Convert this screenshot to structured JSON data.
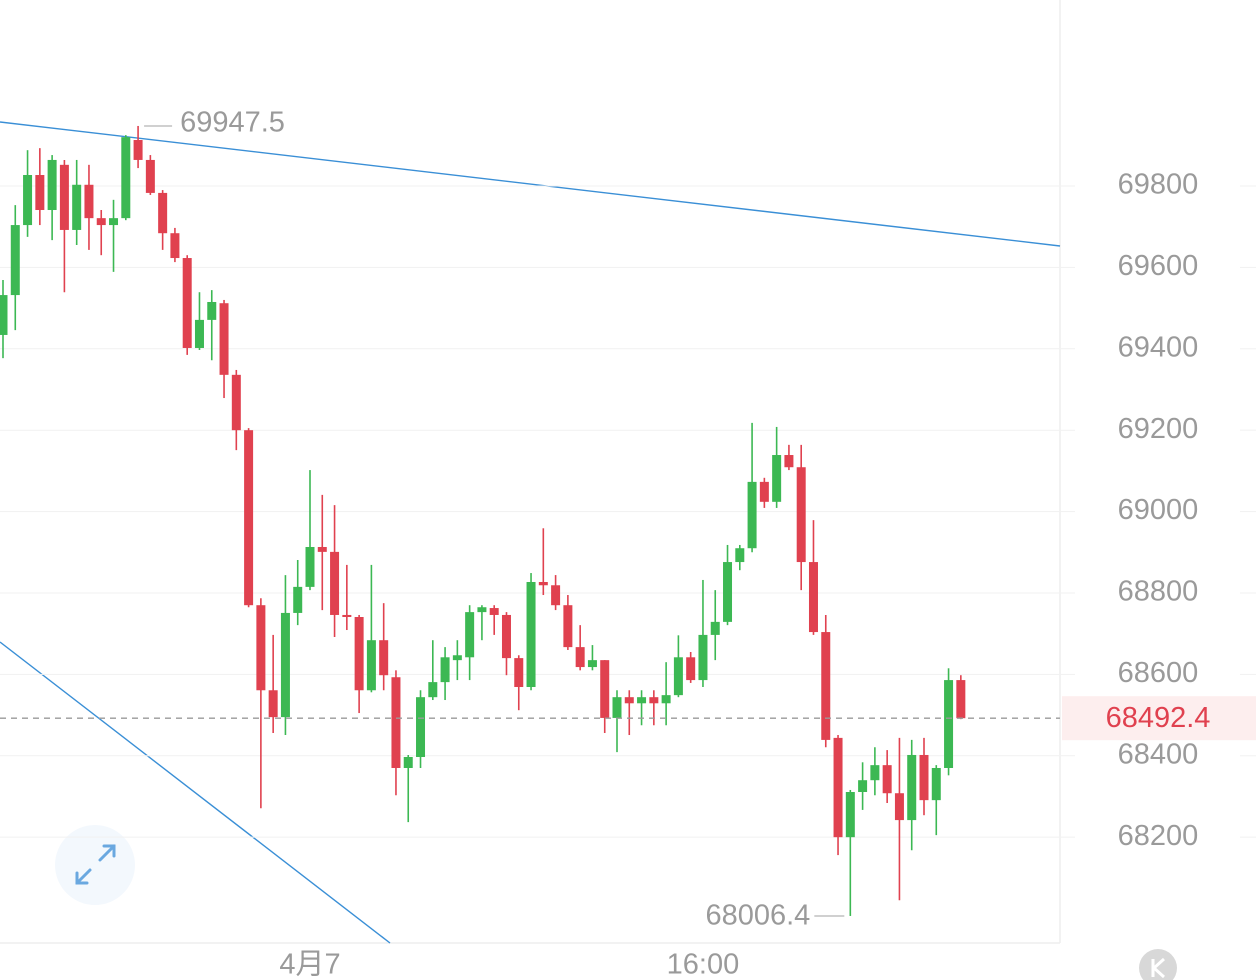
{
  "chart_data": {
    "type": "candlestick",
    "categories": [
      null,
      null,
      null,
      null,
      null,
      null,
      null,
      null,
      null,
      null,
      null,
      null,
      null,
      null,
      null,
      null,
      null,
      null,
      null,
      null,
      null,
      null,
      null,
      null,
      null,
      "4月7",
      null,
      null,
      null,
      null,
      null,
      null,
      null,
      null,
      null,
      null,
      null,
      null,
      null,
      null,
      null,
      null,
      null,
      null,
      null,
      null,
      null,
      null,
      null,
      null,
      null,
      null,
      null,
      null,
      null,
      null,
      null,
      "16:00",
      null,
      null,
      null,
      null,
      null,
      null,
      null,
      null,
      null,
      null,
      null,
      null,
      null,
      null,
      null,
      null,
      null,
      null,
      null,
      null,
      null
    ],
    "open": [
      69434,
      69532,
      69704,
      69827,
      69741,
      69852,
      69692,
      69803,
      69721,
      69704,
      69721,
      69913,
      69864,
      69783,
      69684,
      69623,
      69402,
      69471,
      69512,
      69336,
      69200,
      68770,
      68561,
      68495,
      68751,
      68815,
      68913,
      68901,
      68746,
      68741,
      68561,
      68684,
      68593,
      68370,
      68397,
      68544,
      68581,
      68635,
      68642,
      68753,
      68763,
      68746,
      68640,
      68569,
      68827,
      68819,
      68770,
      68667,
      68618,
      68635,
      68493,
      68544,
      68529,
      68544,
      68529,
      68549,
      68642,
      68586,
      68697,
      68729,
      68876,
      68910,
      69073,
      69024,
      69139,
      69109,
      68876,
      68704,
      68444,
      68200,
      68311,
      68340,
      68377,
      68308,
      68242,
      68402,
      68291,
      68370,
      68586
    ],
    "high": [
      69569,
      69753,
      69888,
      69893,
      69876,
      69864,
      69864,
      69852,
      69741,
      69766,
      69925,
      69947.5,
      69876,
      69790,
      69697,
      69630,
      69539,
      69544,
      69520,
      69348,
      69205,
      68787,
      68697,
      68844,
      68881,
      69102,
      69041,
      69016,
      68869,
      68746,
      68869,
      68775,
      68610,
      68402,
      68561,
      68684,
      68667,
      68684,
      68770,
      68770,
      68770,
      68753,
      68647,
      68849,
      68959,
      68844,
      68795,
      68721,
      68672,
      68635,
      68561,
      68561,
      68561,
      68561,
      68630,
      68696,
      68655,
      68832,
      68807,
      68918,
      68918,
      69218,
      69083,
      69208,
      69164,
      69164,
      68979,
      68746,
      68451,
      68316,
      68384,
      68421,
      68414,
      68444,
      68439,
      68444,
      68377,
      68615,
      68598
    ],
    "low": [
      69377,
      69446,
      69675,
      69704,
      69667,
      69539,
      69655,
      69643,
      69630,
      69589,
      69716,
      69844,
      69778,
      69643,
      69613,
      69385,
      69397,
      69372,
      69279,
      69151,
      68765,
      68271,
      68456,
      68451,
      68721,
      68807,
      68758,
      68692,
      68709,
      68505,
      68556,
      68561,
      68303,
      68237,
      68370,
      68537,
      68537,
      68586,
      68586,
      68684,
      68697,
      68598,
      68512,
      68561,
      68795,
      68758,
      68660,
      68610,
      68610,
      68456,
      68409,
      68451,
      68475,
      68475,
      68475,
      68544,
      68579,
      68569,
      68635,
      68721,
      68856,
      68900,
      69009,
      69009,
      69102,
      68807,
      68697,
      68421,
      68156,
      68006.4,
      68267,
      68303,
      68284,
      68045,
      68168,
      68254,
      68205,
      68352,
      68490
    ],
    "close": [
      69532,
      69704,
      69827,
      69741,
      69864,
      69692,
      69803,
      69721,
      69704,
      69721,
      69920,
      69864,
      69783,
      69684,
      69623,
      69402,
      69471,
      69515,
      69336,
      69200,
      68770,
      68561,
      68495,
      68751,
      68815,
      68913,
      68901,
      68746,
      68741,
      68561,
      68684,
      68598,
      68370,
      68397,
      68544,
      68581,
      68642,
      68647,
      68753,
      68765,
      68746,
      68640,
      68569,
      68827,
      68819,
      68770,
      68667,
      68618,
      68635,
      68493,
      68544,
      68529,
      68544,
      68529,
      68549,
      68642,
      68586,
      68697,
      68729,
      68876,
      68910,
      69073,
      69024,
      69139,
      69109,
      68876,
      68704,
      68439,
      68200,
      68311,
      68340,
      68377,
      68308,
      68242,
      68402,
      68291,
      68370,
      68586,
      68492.4
    ],
    "up_color": "#3cb853",
    "down_color": "#e0414f",
    "last_color": "#e0414f",
    "ylim": [
      67940,
      70257
    ],
    "yticks": [
      68200,
      68400,
      68600,
      68800,
      69000,
      69200,
      69400,
      69600,
      69800
    ],
    "grid": true
  }
}
